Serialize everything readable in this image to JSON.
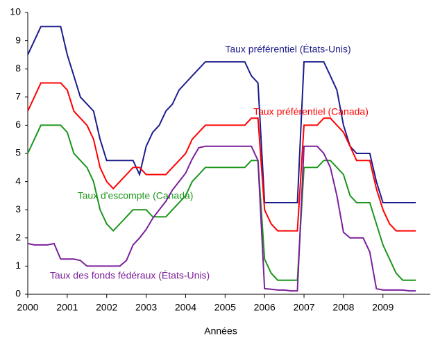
{
  "chart_data": {
    "type": "line",
    "x_label": "Années",
    "x": [
      2000,
      2000.167,
      2000.333,
      2000.5,
      2000.667,
      2000.833,
      2001,
      2001.167,
      2001.333,
      2001.5,
      2001.667,
      2001.833,
      2002,
      2002.167,
      2002.333,
      2002.5,
      2002.667,
      2002.833,
      2003,
      2003.167,
      2003.333,
      2003.5,
      2003.667,
      2003.833,
      2004,
      2004.167,
      2004.333,
      2004.5,
      2004.667,
      2004.833,
      2005,
      2005.167,
      2005.333,
      2005.5,
      2005.667,
      2005.833,
      2006,
      2006.167,
      2006.333,
      2006.5,
      2006.667,
      2006.833,
      2007,
      2007.167,
      2007.333,
      2007.5,
      2007.667,
      2007.833,
      2008,
      2008.167,
      2008.333,
      2008.5,
      2008.667,
      2008.833,
      2009,
      2009.167,
      2009.333,
      2009.5,
      2009.667,
      2009.833
    ],
    "series": [
      {
        "name": "Taux préférentiel (États-Unis)",
        "color": "#1c1c8c",
        "values": [
          8.5,
          9,
          9.5,
          9.5,
          9.5,
          9.5,
          8.5,
          7.75,
          7,
          6.75,
          6.5,
          5.5,
          4.75,
          4.75,
          4.75,
          4.75,
          4.75,
          4.25,
          5.25,
          5.75,
          6,
          6.5,
          6.75,
          7.25,
          7.5,
          7.75,
          8,
          8.25,
          8.25,
          8.25,
          8.25,
          8.25,
          8.25,
          8.25,
          7.75,
          7.5,
          3.25,
          3.25,
          3.25,
          3.25,
          3.25,
          3.25,
          8.25,
          8.25,
          8.25,
          8.25,
          7.75,
          7.25,
          6,
          5.25,
          5,
          5,
          5,
          4,
          3.25,
          3.25,
          3.25,
          3.25,
          3.25,
          3.25
        ]
      },
      {
        "name": "Taux préférentiel (Canada)",
        "color": "#ff0000",
        "values": [
          6.5,
          7,
          7.5,
          7.5,
          7.5,
          7.5,
          7.25,
          6.5,
          6.25,
          6,
          5.5,
          4.5,
          4,
          3.75,
          4,
          4.25,
          4.5,
          4.5,
          4.25,
          4.25,
          4.25,
          4.25,
          4.5,
          4.75,
          5,
          5.5,
          5.75,
          6,
          6,
          6,
          6,
          6,
          6,
          6,
          6.25,
          6.25,
          3,
          2.5,
          2.25,
          2.25,
          2.25,
          2.25,
          6,
          6,
          6,
          6.25,
          6.25,
          6,
          5.75,
          5.25,
          4.75,
          4.75,
          4.75,
          3.75,
          3,
          2.5,
          2.25,
          2.25,
          2.25,
          2.25
        ]
      },
      {
        "name": "Taux d'escompte (Canada)",
        "color": "#1a951a",
        "values": [
          5,
          5.5,
          6,
          6,
          6,
          6,
          5.75,
          5,
          4.75,
          4.5,
          4,
          3,
          2.5,
          2.25,
          2.5,
          2.75,
          3,
          3,
          3,
          2.75,
          2.75,
          2.75,
          3,
          3.25,
          3.5,
          4,
          4.25,
          4.5,
          4.5,
          4.5,
          4.5,
          4.5,
          4.5,
          4.5,
          4.75,
          4.75,
          1.25,
          0.75,
          0.5,
          0.5,
          0.5,
          0.5,
          4.5,
          4.5,
          4.5,
          4.75,
          4.75,
          4.5,
          4.25,
          3.5,
          3.25,
          3.25,
          3.25,
          2.5,
          1.75,
          1.25,
          0.75,
          0.5,
          0.5,
          0.5
        ]
      },
      {
        "name": "Taux des fonds fédéraux (États-Unis)",
        "color": "#7b1f9a",
        "values": [
          1.8,
          1.75,
          1.75,
          1.75,
          1.8,
          1.25,
          1.25,
          1.25,
          1.2,
          1,
          1,
          1,
          1,
          1,
          1,
          1.2,
          1.75,
          2,
          2.3,
          2.7,
          3,
          3.3,
          3.7,
          4,
          4.3,
          4.8,
          5.2,
          5.25,
          5.25,
          5.25,
          5.25,
          5.25,
          5.25,
          5.25,
          5.25,
          4.75,
          0.2,
          0.18,
          0.15,
          0.15,
          0.12,
          0.12,
          5.25,
          5.25,
          5.25,
          5,
          4.5,
          3.5,
          2.2,
          2,
          2,
          2,
          1.5,
          0.2,
          0.15,
          0.15,
          0.15,
          0.15,
          0.12,
          0.12
        ]
      }
    ],
    "xlim": [
      2000,
      2010.2
    ],
    "xticks": [
      2000,
      2001,
      2002,
      2003,
      2004,
      2005,
      2006,
      2007,
      2008,
      2009
    ],
    "ylim": [
      0,
      10
    ],
    "yticks": [
      0,
      1,
      2,
      3,
      4,
      5,
      6,
      7,
      8,
      9,
      10
    ]
  }
}
